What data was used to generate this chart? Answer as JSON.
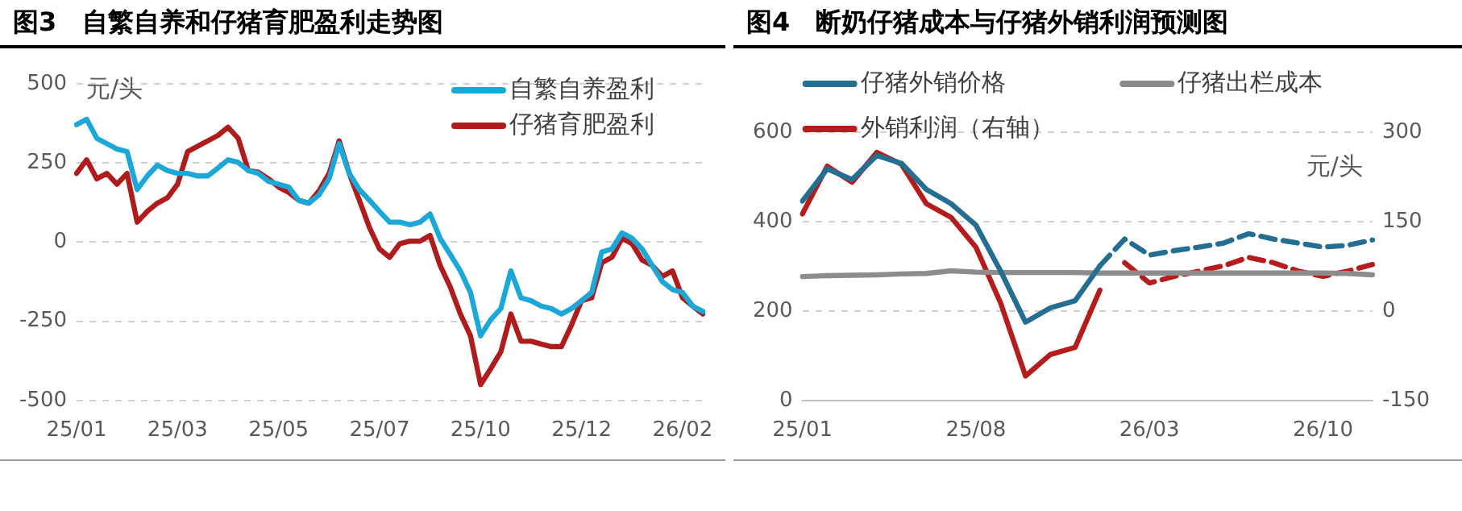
{
  "chart_data": [
    {
      "type": "line",
      "title": "图3　自繁自养和仔猪育肥盈利走势图",
      "ylabel": "元/头",
      "categories": [
        "25/01",
        null,
        null,
        null,
        null,
        null,
        null,
        null,
        null,
        null,
        "25/03",
        null,
        null,
        null,
        null,
        null,
        null,
        null,
        null,
        null,
        "25/05",
        null,
        null,
        null,
        null,
        null,
        null,
        null,
        null,
        null,
        "25/07",
        null,
        null,
        null,
        null,
        null,
        null,
        null,
        null,
        null,
        "25/10",
        null,
        null,
        null,
        null,
        null,
        null,
        null,
        null,
        null,
        "25/12",
        null,
        null,
        null,
        null,
        null,
        null,
        null,
        null,
        null,
        "26/02",
        null,
        null
      ],
      "series": [
        {
          "name": "自繁自养盈利",
          "color": "#1ba8d8",
          "values": [
            371,
            388,
            328,
            311,
            294,
            286,
            166,
            209,
            243,
            226,
            217,
            217,
            209,
            209,
            234,
            260,
            252,
            226,
            217,
            192,
            183,
            174,
            132,
            123,
            149,
            200,
            311,
            217,
            166,
            132,
            97,
            63,
            63,
            55,
            63,
            89,
            12,
            -39,
            -91,
            -159,
            -296,
            -245,
            -210,
            -91,
            -176,
            -185,
            -202,
            -210,
            -227,
            -210,
            -185,
            -159,
            -31,
            -22,
            29,
            12,
            -22,
            -74,
            -125,
            -150,
            -159,
            -202,
            -219
          ]
        },
        {
          "name": "仔猪育肥盈利",
          "color": "#b01c1c",
          "values": [
            217,
            260,
            200,
            217,
            183,
            217,
            63,
            97,
            123,
            140,
            183,
            286,
            303,
            320,
            337,
            363,
            328,
            226,
            221,
            200,
            174,
            157,
            132,
            123,
            162,
            217,
            320,
            217,
            132,
            46,
            -22,
            -48,
            -5,
            3,
            3,
            21,
            -74,
            -142,
            -227,
            -296,
            -450,
            -400,
            -347,
            -227,
            -313,
            -313,
            -322,
            -330,
            -330,
            -262,
            -185,
            -176,
            -65,
            -48,
            12,
            -5,
            -57,
            -74,
            -108,
            -91,
            -176,
            -202,
            -227
          ]
        }
      ],
      "ylim": [
        -500,
        500
      ],
      "yticks": [
        -500,
        -250,
        0,
        250,
        500
      ],
      "grid": "y",
      "legend": "top right"
    },
    {
      "type": "line",
      "title": "图4　断奶仔猪成本与仔猪外销利润预测图",
      "y2label": "元/头",
      "categories": [
        "25/01",
        null,
        null,
        null,
        null,
        null,
        null,
        "25/08",
        null,
        null,
        null,
        null,
        null,
        null,
        "26/03",
        null,
        null,
        null,
        null,
        null,
        null,
        "26/10",
        null,
        null
      ],
      "series": [
        {
          "name": "仔猪外销价格",
          "color": "#236e91",
          "values": [
            446,
            518,
            494,
            548,
            530,
            472,
            440,
            392,
            289,
            175,
            207,
            223,
            301,
            null,
            null,
            null,
            null,
            null,
            null,
            null,
            null,
            null,
            null,
            null
          ]
        },
        {
          "color": "#236e91",
          "line_style": "dashed",
          "values": [
            null,
            null,
            null,
            null,
            null,
            null,
            null,
            null,
            null,
            null,
            null,
            null,
            301,
            361,
            325,
            335,
            343,
            352,
            373,
            361,
            352,
            343,
            347,
            359
          ]
        },
        {
          "name": "仔猪出栏成本",
          "color": "#8c8c8c",
          "values": [
            277,
            279,
            280,
            281,
            283,
            284,
            290,
            287,
            286,
            286,
            286,
            286,
            285,
            285,
            285,
            285,
            285,
            285,
            285,
            285,
            285,
            285,
            284,
            281
          ]
        },
        {
          "name": "外销利润（右轴）",
          "color": "#b71c1c",
          "axis": "y2",
          "values": [
            163,
            243,
            216,
            266,
            246,
            180,
            157,
            107,
            13,
            -109,
            -73,
            -61,
            35,
            null,
            null,
            null,
            null,
            null,
            null,
            null,
            null,
            null,
            null,
            null
          ]
        },
        {
          "color": "#b71c1c",
          "axis": "y2",
          "line_style": "dashed",
          "values": [
            null,
            null,
            null,
            null,
            null,
            null,
            null,
            null,
            null,
            null,
            null,
            null,
            null,
            81,
            47,
            58,
            67,
            76,
            90,
            81,
            67,
            58,
            67,
            78
          ]
        }
      ],
      "ylim": [
        0,
        600
      ],
      "yticks": [
        0,
        200,
        400,
        600
      ],
      "y2lim": [
        -150,
        300
      ],
      "y2ticks": [
        -150,
        0,
        150,
        300
      ],
      "grid": "y",
      "legend": "top"
    }
  ]
}
